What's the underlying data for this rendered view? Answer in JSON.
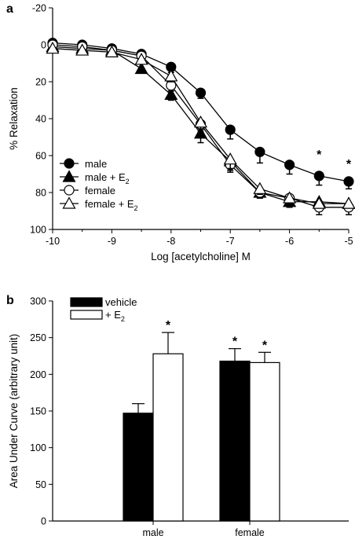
{
  "chart_data": [
    {
      "panel": "a",
      "type": "line",
      "xlabel": "Log [acetylcholine] M",
      "ylabel": "% Relaxation",
      "xlim": [
        -10,
        -5
      ],
      "ylim": [
        -20,
        100
      ],
      "y_inverted": true,
      "xticks": [
        -10,
        -9,
        -8,
        -7,
        -6,
        -5
      ],
      "yticks": [
        -20,
        0,
        20,
        40,
        60,
        80,
        100
      ],
      "x": [
        -10,
        -9.5,
        -9,
        -8.5,
        -8,
        -7.5,
        -7,
        -6.5,
        -6,
        -5.5,
        -5
      ],
      "legend_position": "lower-left",
      "series": [
        {
          "name": "male",
          "marker": "circle",
          "fill": "#000000",
          "values": [
            -1,
            0,
            2,
            5,
            12,
            26,
            46,
            58,
            65,
            71,
            74
          ],
          "errors": [
            1,
            1,
            1,
            2,
            3,
            3,
            5,
            6,
            5,
            5,
            4
          ]
        },
        {
          "name": "male + E",
          "subscript": "2",
          "marker": "triangle",
          "fill": "#000000",
          "values": [
            1,
            2,
            3,
            13,
            27,
            48,
            63,
            80,
            85,
            85,
            86
          ],
          "errors": [
            1,
            1,
            1,
            2,
            3,
            5,
            5,
            3,
            3,
            7,
            6
          ]
        },
        {
          "name": "female",
          "marker": "circle",
          "fill": "#ffffff",
          "values": [
            0,
            1,
            3,
            6,
            22,
            43,
            65,
            80,
            83,
            88,
            88
          ],
          "errors": [
            1,
            1,
            1,
            2,
            3,
            4,
            4,
            3,
            3,
            2,
            2
          ]
        },
        {
          "name": "female + E",
          "subscript": "2",
          "marker": "triangle",
          "fill": "#ffffff",
          "values": [
            2,
            3,
            4,
            8,
            17,
            42,
            62,
            78,
            83,
            86,
            86
          ],
          "errors": [
            1,
            1,
            1,
            2,
            3,
            4,
            5,
            3,
            3,
            2,
            2
          ]
        }
      ],
      "annotations": [
        {
          "text": "*",
          "x": -5.5,
          "y": 60
        },
        {
          "text": "*",
          "x": -5,
          "y": 65
        }
      ]
    },
    {
      "panel": "b",
      "type": "bar",
      "ylabel": "Area Under Curve (arbitrary unit)",
      "ylim": [
        0,
        300
      ],
      "yticks": [
        0,
        50,
        100,
        150,
        200,
        250,
        300
      ],
      "categories": [
        "male",
        "female"
      ],
      "legend_position": "top-left",
      "series": [
        {
          "name": "vehicle",
          "fill": "#000000",
          "values": [
            147,
            218
          ],
          "errors": [
            13,
            17
          ]
        },
        {
          "name": "+ E",
          "subscript": "2",
          "fill": "#ffffff",
          "values": [
            228,
            216
          ],
          "errors": [
            29,
            14
          ]
        }
      ],
      "annotations": [
        {
          "text": "*",
          "category": "male",
          "series": 1
        },
        {
          "text": "*",
          "category": "female",
          "series": 0
        },
        {
          "text": "*",
          "category": "female",
          "series": 1
        }
      ]
    }
  ]
}
